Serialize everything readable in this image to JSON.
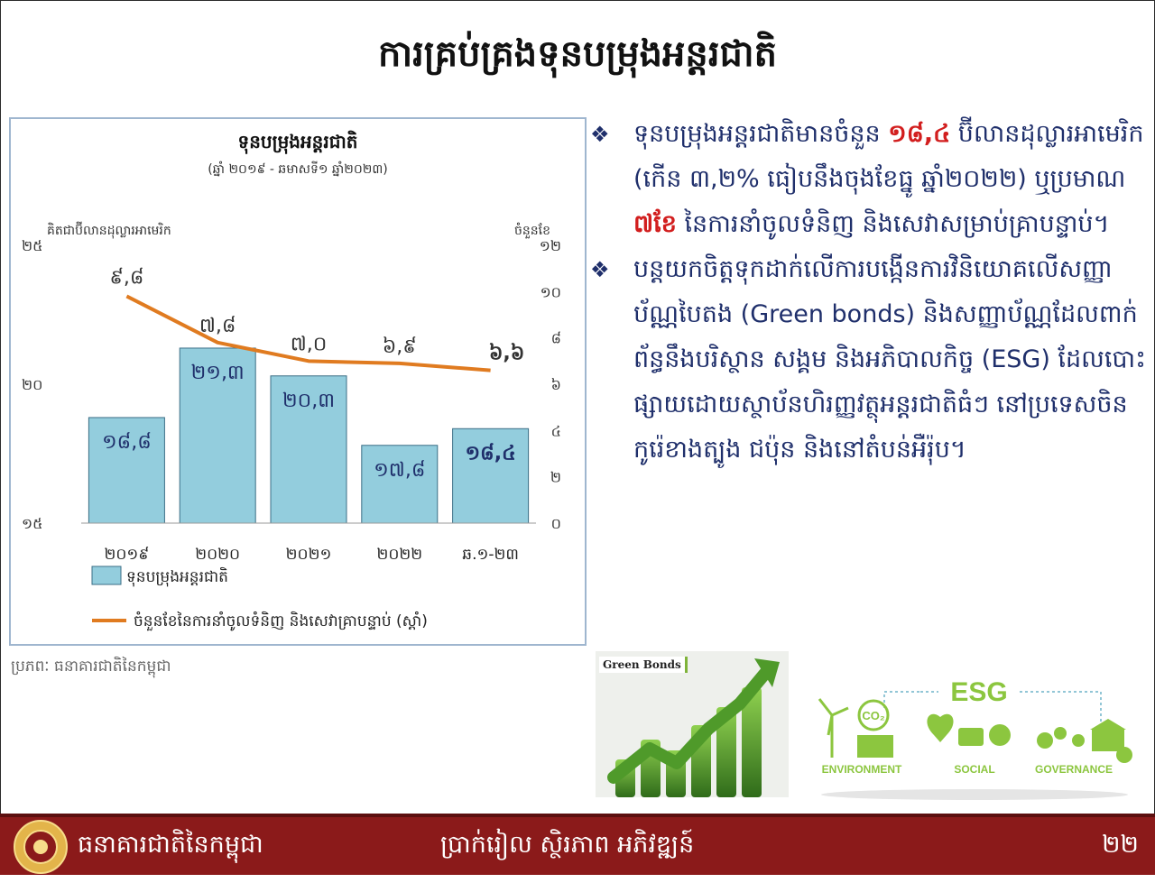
{
  "title": "ការគ្រប់គ្រងទុនបម្រុងអន្តរជាតិ",
  "chart_data": {
    "type": "bar",
    "title": "ទុនបម្រុងអន្តរជាតិ",
    "subtitle": "(ឆ្នាំ ២០១៩ - ឆមាសទី១ ឆ្នាំ២០២៣)",
    "ylabel_left": "គិតជាប៊ីលានដុល្លារអាមេរិក",
    "ylabel_right": "ចំនួនខែ",
    "categories": [
      "២០១៩",
      "២០២០",
      "២០២១",
      "២០២២",
      "ឆ.១-២៣"
    ],
    "ylim_left": [
      15,
      25
    ],
    "yticks_left": [
      "១៥",
      "២០",
      "២៥"
    ],
    "ylim_right": [
      0,
      12
    ],
    "yticks_right": [
      "០",
      "២",
      "៤",
      "៦",
      "៨",
      "១០",
      "១២"
    ],
    "series": [
      {
        "name": "ទុនបម្រុងអន្តរជាតិ",
        "kind": "bar",
        "axis": "left",
        "color": "#93cddd",
        "values": [
          18.8,
          21.3,
          20.3,
          17.8,
          18.4
        ],
        "labels": [
          "១៨,៨",
          "២១,៣",
          "២០,៣",
          "១៧,៨",
          "១៨,៤"
        ]
      },
      {
        "name": "ចំនួនខែនៃការនាំចូលទំនិញ និងសេវាគ្រាបន្ទាប់ (ស្តាំ)",
        "kind": "line",
        "axis": "right",
        "color": "#e07b20",
        "values": [
          9.8,
          7.8,
          7.0,
          6.9,
          6.6
        ],
        "labels": [
          "៩,៨",
          "៧,៨",
          "៧,០",
          "៦,៩",
          "៦,៦"
        ]
      }
    ],
    "legend": "bottom"
  },
  "source": "ប្រភពៈ ធនាគារជាតិនៃកម្ពុជា",
  "bullets": [
    {
      "mark": "❖",
      "p1": "ទុនបម្រុងអន្តរជាតិមានចំនួន ",
      "h1": "១៨,៤",
      "p2": " ប៊ីលានដុល្លារអាមេរិក (កើន ៣,២% ធៀបនឹងចុងខែធ្នូ ឆ្នាំ២០២២) ឬប្រមាណ ",
      "h2": "៧ខែ",
      "p3": " នៃការនាំចូលទំនិញ និងសេវាសម្រាប់គ្រាបន្ទាប់។"
    },
    {
      "mark": "❖",
      "text": "បន្តយកចិត្តទុកដាក់លើការបង្កើនការវិនិយោគលើសញ្ញាប័ណ្ណបៃតង (Green bonds) និងសញ្ញាប័ណ្ណដែលពាក់ព័ន្ធនឹងបរិស្ថាន សង្គម និងអភិបាលកិច្ច (ESG) ដែលបោះផ្សាយដោយស្ថាប័នហិរញ្ញវត្ថុអន្តរជាតិធំៗ នៅប្រទេសចិន កូរ៉េខាងត្បូង ជប៉ុន និងនៅតំបន់អឺរ៉ុប។"
    }
  ],
  "images": {
    "green_bonds_label": "Green Bonds",
    "esg_title": "ESG",
    "esg_labels": [
      "ENVIRONMENT",
      "SOCIAL",
      "GOVERNANCE"
    ],
    "co2": "CO₂"
  },
  "footer": {
    "bank_name": "ធនាគារជាតិនៃកម្ពុជា",
    "slogan": "ប្រាក់រៀល ស្ថិរភាព អភិវឌ្ឍន៍",
    "page": "២២"
  },
  "colors": {
    "footer": "#8b1a1a",
    "text": "#1f2f6b",
    "highlight": "#d21e1e",
    "bar": "#93cddd",
    "line": "#e07b20",
    "esg_green": "#8cc63f"
  }
}
